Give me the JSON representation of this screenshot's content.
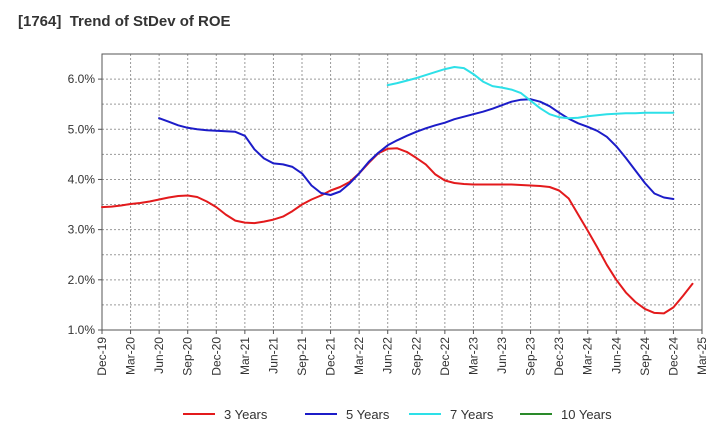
{
  "chart_data": {
    "type": "line",
    "title": "[1764]  Trend of StDev of ROE",
    "x_tick_labels": [
      "Dec-19",
      "Mar-20",
      "Jun-20",
      "Sep-20",
      "Dec-20",
      "Mar-21",
      "Jun-21",
      "Sep-21",
      "Dec-21",
      "Mar-22",
      "Jun-22",
      "Sep-22",
      "Dec-22",
      "Mar-23",
      "Jun-23",
      "Sep-23",
      "Dec-23",
      "Mar-24",
      "Jun-24",
      "Sep-24",
      "Dec-24",
      "Mar-25"
    ],
    "y_ticks": [
      "1.0%",
      "2.0%",
      "3.0%",
      "4.0%",
      "5.0%",
      "6.0%"
    ],
    "ylim": [
      1.0,
      6.5
    ],
    "y_unit": "%",
    "grid": true,
    "legend_position": "bottom",
    "series": [
      {
        "name": "3 Years",
        "color": "#e31a1c",
        "points": [
          [
            "Dec-19",
            3.45
          ],
          [
            "Jan-20",
            3.46
          ],
          [
            "Feb-20",
            3.48
          ],
          [
            "Mar-20",
            3.51
          ],
          [
            "Apr-20",
            3.53
          ],
          [
            "May-20",
            3.56
          ],
          [
            "Jun-20",
            3.6
          ],
          [
            "Jul-20",
            3.64
          ],
          [
            "Aug-20",
            3.67
          ],
          [
            "Sep-20",
            3.68
          ],
          [
            "Oct-20",
            3.65
          ],
          [
            "Nov-20",
            3.56
          ],
          [
            "Dec-20",
            3.45
          ],
          [
            "Jan-21",
            3.3
          ],
          [
            "Feb-21",
            3.18
          ],
          [
            "Mar-21",
            3.14
          ],
          [
            "Apr-21",
            3.13
          ],
          [
            "May-21",
            3.16
          ],
          [
            "Jun-21",
            3.2
          ],
          [
            "Jul-21",
            3.26
          ],
          [
            "Aug-21",
            3.37
          ],
          [
            "Sep-21",
            3.5
          ],
          [
            "Oct-21",
            3.6
          ],
          [
            "Nov-21",
            3.68
          ],
          [
            "Dec-21",
            3.78
          ],
          [
            "Jan-22",
            3.85
          ],
          [
            "Feb-22",
            3.95
          ],
          [
            "Mar-22",
            4.12
          ],
          [
            "Apr-22",
            4.33
          ],
          [
            "May-22",
            4.52
          ],
          [
            "Jun-22",
            4.61
          ],
          [
            "Jul-22",
            4.62
          ],
          [
            "Aug-22",
            4.55
          ],
          [
            "Sep-22",
            4.43
          ],
          [
            "Oct-22",
            4.3
          ],
          [
            "Nov-22",
            4.1
          ],
          [
            "Dec-22",
            3.98
          ],
          [
            "Jan-23",
            3.93
          ],
          [
            "Feb-23",
            3.91
          ],
          [
            "Mar-23",
            3.9
          ],
          [
            "Apr-23",
            3.9
          ],
          [
            "May-23",
            3.9
          ],
          [
            "Jun-23",
            3.9
          ],
          [
            "Jul-23",
            3.9
          ],
          [
            "Aug-23",
            3.89
          ],
          [
            "Sep-23",
            3.88
          ],
          [
            "Oct-23",
            3.87
          ],
          [
            "Nov-23",
            3.85
          ],
          [
            "Dec-23",
            3.78
          ],
          [
            "Jan-24",
            3.62
          ],
          [
            "Feb-24",
            3.3
          ],
          [
            "Mar-24",
            2.98
          ],
          [
            "Apr-24",
            2.65
          ],
          [
            "May-24",
            2.3
          ],
          [
            "Jun-24",
            2.0
          ],
          [
            "Jul-24",
            1.75
          ],
          [
            "Aug-24",
            1.56
          ],
          [
            "Sep-24",
            1.42
          ],
          [
            "Oct-24",
            1.34
          ],
          [
            "Nov-24",
            1.33
          ],
          [
            "Dec-24",
            1.45
          ],
          [
            "Jan-25",
            1.68
          ],
          [
            "Feb-25",
            1.92
          ]
        ]
      },
      {
        "name": "5 Years",
        "color": "#1c1cc8",
        "points": [
          [
            "Jun-20",
            5.22
          ],
          [
            "Jul-20",
            5.15
          ],
          [
            "Aug-20",
            5.08
          ],
          [
            "Sep-20",
            5.03
          ],
          [
            "Oct-20",
            5.0
          ],
          [
            "Nov-20",
            4.98
          ],
          [
            "Dec-20",
            4.97
          ],
          [
            "Jan-21",
            4.96
          ],
          [
            "Feb-21",
            4.95
          ],
          [
            "Mar-21",
            4.87
          ],
          [
            "Apr-21",
            4.6
          ],
          [
            "May-21",
            4.42
          ],
          [
            "Jun-21",
            4.32
          ],
          [
            "Jul-21",
            4.3
          ],
          [
            "Aug-21",
            4.25
          ],
          [
            "Sep-21",
            4.12
          ],
          [
            "Oct-21",
            3.88
          ],
          [
            "Nov-21",
            3.73
          ],
          [
            "Dec-21",
            3.69
          ],
          [
            "Jan-22",
            3.76
          ],
          [
            "Feb-22",
            3.92
          ],
          [
            "Mar-22",
            4.12
          ],
          [
            "Apr-22",
            4.35
          ],
          [
            "May-22",
            4.53
          ],
          [
            "Jun-22",
            4.68
          ],
          [
            "Jul-22",
            4.78
          ],
          [
            "Aug-22",
            4.87
          ],
          [
            "Sep-22",
            4.95
          ],
          [
            "Oct-22",
            5.02
          ],
          [
            "Nov-22",
            5.08
          ],
          [
            "Dec-22",
            5.13
          ],
          [
            "Jan-23",
            5.2
          ],
          [
            "Feb-23",
            5.25
          ],
          [
            "Mar-23",
            5.3
          ],
          [
            "Apr-23",
            5.35
          ],
          [
            "May-23",
            5.41
          ],
          [
            "Jun-23",
            5.48
          ],
          [
            "Jul-23",
            5.55
          ],
          [
            "Aug-23",
            5.59
          ],
          [
            "Sep-23",
            5.6
          ],
          [
            "Oct-23",
            5.55
          ],
          [
            "Nov-23",
            5.46
          ],
          [
            "Dec-23",
            5.33
          ],
          [
            "Jan-24",
            5.21
          ],
          [
            "Feb-24",
            5.12
          ],
          [
            "Mar-24",
            5.05
          ],
          [
            "Apr-24",
            4.97
          ],
          [
            "May-24",
            4.85
          ],
          [
            "Jun-24",
            4.66
          ],
          [
            "Jul-24",
            4.43
          ],
          [
            "Aug-24",
            4.18
          ],
          [
            "Sep-24",
            3.93
          ],
          [
            "Oct-24",
            3.72
          ],
          [
            "Nov-24",
            3.64
          ],
          [
            "Dec-24",
            3.61
          ]
        ]
      },
      {
        "name": "7 Years",
        "color": "#2de0e8",
        "points": [
          [
            "Jun-22",
            5.88
          ],
          [
            "Jul-22",
            5.92
          ],
          [
            "Aug-22",
            5.97
          ],
          [
            "Sep-22",
            6.02
          ],
          [
            "Oct-22",
            6.08
          ],
          [
            "Nov-22",
            6.14
          ],
          [
            "Dec-22",
            6.2
          ],
          [
            "Jan-23",
            6.24
          ],
          [
            "Feb-23",
            6.22
          ],
          [
            "Mar-23",
            6.1
          ],
          [
            "Apr-23",
            5.95
          ],
          [
            "May-23",
            5.86
          ],
          [
            "Jun-23",
            5.83
          ],
          [
            "Jul-23",
            5.79
          ],
          [
            "Aug-23",
            5.72
          ],
          [
            "Sep-23",
            5.57
          ],
          [
            "Oct-23",
            5.42
          ],
          [
            "Nov-23",
            5.3
          ],
          [
            "Dec-23",
            5.24
          ],
          [
            "Jan-24",
            5.22
          ],
          [
            "Feb-24",
            5.23
          ],
          [
            "Mar-24",
            5.26
          ],
          [
            "Apr-24",
            5.28
          ],
          [
            "May-24",
            5.3
          ],
          [
            "Jun-24",
            5.31
          ],
          [
            "Jul-24",
            5.32
          ],
          [
            "Aug-24",
            5.32
          ],
          [
            "Sep-24",
            5.33
          ],
          [
            "Oct-24",
            5.33
          ],
          [
            "Nov-24",
            5.33
          ],
          [
            "Dec-24",
            5.33
          ]
        ]
      },
      {
        "name": "10 Years",
        "color": "#2a8a2a",
        "points": []
      }
    ]
  }
}
